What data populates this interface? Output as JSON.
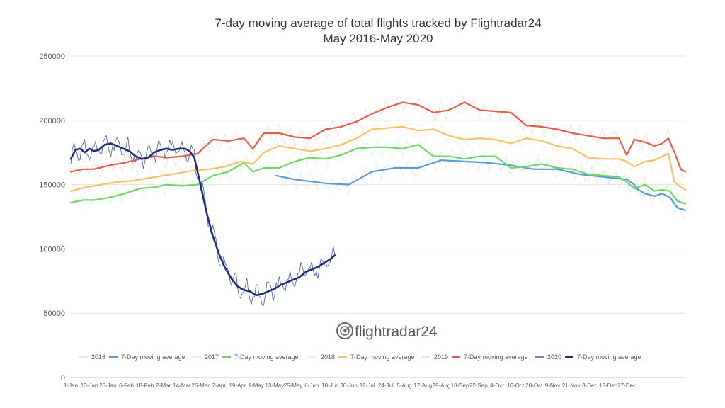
{
  "chart_data": {
    "type": "line",
    "title": "7-day moving average of total flights tracked by Flightradar24",
    "subtitle": "May 2016-May 2020",
    "ylim": [
      0,
      250000
    ],
    "grid": true,
    "legend_position": "bottom",
    "y_ticks": [
      "0",
      "50000",
      "100000",
      "150000",
      "200000",
      "250000"
    ],
    "x_ticks": [
      "1-Jan",
      "13-Jan",
      "25-Jan",
      "6-Feb",
      "18-Feb",
      "2-Mar",
      "14-Mar",
      "26-Mar",
      "7-Apr",
      "19-Apr",
      "1-May",
      "13-May",
      "25-May",
      "6-Jun",
      "18-Jun",
      "30-Jun",
      "12-Jul",
      "24-Jul",
      "5-Aug",
      "17-Aug",
      "29-Aug",
      "10-Sep",
      "22-Sep",
      "4-Oct",
      "16-Oct",
      "28-Oct",
      "9-Nov",
      "21-Nov",
      "3-Dec",
      "15-Dec",
      "27-Dec"
    ],
    "series": [
      {
        "year": "2016",
        "name": "7-Day moving average",
        "color": "#5b9bd5",
        "daily_color": "#cfe0f1",
        "points": [
          [
            133,
            157000
          ],
          [
            145,
            154000
          ],
          [
            165,
            151000
          ],
          [
            180,
            150000
          ],
          [
            195,
            160000
          ],
          [
            210,
            163000
          ],
          [
            225,
            163000
          ],
          [
            240,
            169000
          ],
          [
            255,
            168000
          ],
          [
            270,
            167000
          ],
          [
            285,
            165000
          ],
          [
            300,
            162000
          ],
          [
            315,
            162000
          ],
          [
            330,
            158000
          ],
          [
            345,
            156000
          ],
          [
            360,
            154000
          ],
          [
            365,
            150000
          ],
          [
            366,
            147000
          ],
          [
            372,
            143000
          ],
          [
            378,
            141000
          ],
          [
            383,
            143000
          ],
          [
            388,
            140000
          ],
          [
            393,
            132000
          ],
          [
            398,
            130000
          ]
        ]
      },
      {
        "year": "2017",
        "name": "7-Day moving average",
        "color": "#70d46a",
        "daily_color": "#d6f2d2",
        "points": [
          [
            0,
            136000
          ],
          [
            8,
            138000
          ],
          [
            15,
            138000
          ],
          [
            25,
            140000
          ],
          [
            35,
            143000
          ],
          [
            45,
            147000
          ],
          [
            55,
            148000
          ],
          [
            62,
            150000
          ],
          [
            72,
            149000
          ],
          [
            82,
            150000
          ],
          [
            92,
            157000
          ],
          [
            102,
            160000
          ],
          [
            112,
            167000
          ],
          [
            118,
            160000
          ],
          [
            125,
            163000
          ],
          [
            135,
            163000
          ],
          [
            145,
            168000
          ],
          [
            155,
            171000
          ],
          [
            165,
            170000
          ],
          [
            175,
            173000
          ],
          [
            185,
            178000
          ],
          [
            195,
            179000
          ],
          [
            205,
            179000
          ],
          [
            215,
            178000
          ],
          [
            225,
            181000
          ],
          [
            235,
            172000
          ],
          [
            245,
            172000
          ],
          [
            255,
            170000
          ],
          [
            265,
            172000
          ],
          [
            275,
            172000
          ],
          [
            285,
            163000
          ],
          [
            295,
            164000
          ],
          [
            305,
            166000
          ],
          [
            315,
            163000
          ],
          [
            325,
            162000
          ],
          [
            335,
            158000
          ],
          [
            345,
            157000
          ],
          [
            355,
            156000
          ],
          [
            360,
            152000
          ],
          [
            365,
            147000
          ],
          [
            372,
            150000
          ],
          [
            378,
            145000
          ],
          [
            383,
            146000
          ],
          [
            388,
            145000
          ],
          [
            393,
            137000
          ],
          [
            398,
            135000
          ]
        ]
      },
      {
        "year": "2018",
        "name": "7-Day moving average",
        "color": "#f0c26a",
        "daily_color": "#fbe9c9",
        "points": [
          [
            0,
            145000
          ],
          [
            10,
            148000
          ],
          [
            20,
            150000
          ],
          [
            30,
            152000
          ],
          [
            40,
            153000
          ],
          [
            50,
            155000
          ],
          [
            60,
            157000
          ],
          [
            70,
            159000
          ],
          [
            80,
            161000
          ],
          [
            90,
            162000
          ],
          [
            100,
            164000
          ],
          [
            110,
            168000
          ],
          [
            118,
            166000
          ],
          [
            125,
            175000
          ],
          [
            135,
            180000
          ],
          [
            145,
            178000
          ],
          [
            155,
            176000
          ],
          [
            165,
            178000
          ],
          [
            175,
            181000
          ],
          [
            185,
            186000
          ],
          [
            195,
            193000
          ],
          [
            205,
            194000
          ],
          [
            215,
            195000
          ],
          [
            225,
            192000
          ],
          [
            235,
            193000
          ],
          [
            245,
            188000
          ],
          [
            255,
            185000
          ],
          [
            265,
            186000
          ],
          [
            275,
            185000
          ],
          [
            285,
            182000
          ],
          [
            295,
            186000
          ],
          [
            305,
            184000
          ],
          [
            315,
            180000
          ],
          [
            325,
            178000
          ],
          [
            335,
            171000
          ],
          [
            345,
            170000
          ],
          [
            355,
            170000
          ],
          [
            360,
            168000
          ],
          [
            365,
            164000
          ],
          [
            372,
            168000
          ],
          [
            378,
            169000
          ],
          [
            383,
            172000
          ],
          [
            387,
            174000
          ],
          [
            391,
            152000
          ],
          [
            395,
            148000
          ],
          [
            398,
            146000
          ]
        ]
      },
      {
        "year": "2019",
        "name": "7-Day moving average",
        "color": "#d9614e",
        "daily_color": "#f4d0ca",
        "points": [
          [
            0,
            160000
          ],
          [
            8,
            162000
          ],
          [
            15,
            162000
          ],
          [
            25,
            165000
          ],
          [
            35,
            167000
          ],
          [
            45,
            170000
          ],
          [
            55,
            172000
          ],
          [
            62,
            171000
          ],
          [
            72,
            172000
          ],
          [
            82,
            174000
          ],
          [
            92,
            185000
          ],
          [
            102,
            184000
          ],
          [
            112,
            186000
          ],
          [
            118,
            178000
          ],
          [
            125,
            190000
          ],
          [
            135,
            190000
          ],
          [
            145,
            187000
          ],
          [
            155,
            186000
          ],
          [
            165,
            193000
          ],
          [
            175,
            195000
          ],
          [
            185,
            199000
          ],
          [
            195,
            205000
          ],
          [
            205,
            210000
          ],
          [
            215,
            214000
          ],
          [
            225,
            212000
          ],
          [
            235,
            206000
          ],
          [
            245,
            208000
          ],
          [
            255,
            214000
          ],
          [
            265,
            208000
          ],
          [
            275,
            207000
          ],
          [
            285,
            206000
          ],
          [
            295,
            196000
          ],
          [
            305,
            195000
          ],
          [
            315,
            193000
          ],
          [
            325,
            190000
          ],
          [
            335,
            188000
          ],
          [
            345,
            186000
          ],
          [
            355,
            186000
          ],
          [
            360,
            173000
          ],
          [
            365,
            185000
          ],
          [
            372,
            183000
          ],
          [
            378,
            180000
          ],
          [
            383,
            182000
          ],
          [
            387,
            186000
          ],
          [
            391,
            175000
          ],
          [
            395,
            162000
          ],
          [
            398,
            160000
          ]
        ]
      },
      {
        "year": "2020",
        "name": "7-Day moving average",
        "color": "#1f2f7a",
        "daily_color": "#4055ad",
        "points": [
          [
            0,
            170000
          ],
          [
            3,
            177000
          ],
          [
            6,
            178000
          ],
          [
            9,
            175000
          ],
          [
            12,
            178000
          ],
          [
            15,
            176000
          ],
          [
            18,
            177000
          ],
          [
            22,
            181000
          ],
          [
            26,
            182000
          ],
          [
            30,
            180000
          ],
          [
            34,
            178000
          ],
          [
            38,
            176000
          ],
          [
            42,
            172000
          ],
          [
            46,
            170000
          ],
          [
            50,
            171000
          ],
          [
            54,
            175000
          ],
          [
            58,
            177000
          ],
          [
            62,
            178000
          ],
          [
            66,
            177000
          ],
          [
            70,
            178000
          ],
          [
            74,
            178000
          ],
          [
            77,
            176000
          ],
          [
            80,
            171000
          ],
          [
            84,
            150000
          ],
          [
            88,
            128000
          ],
          [
            92,
            110000
          ],
          [
            96,
            96000
          ],
          [
            100,
            85000
          ],
          [
            104,
            77000
          ],
          [
            108,
            71000
          ],
          [
            112,
            68000
          ],
          [
            116,
            67000
          ],
          [
            120,
            64000
          ],
          [
            124,
            65000
          ],
          [
            128,
            67000
          ],
          [
            132,
            69000
          ],
          [
            136,
            72000
          ],
          [
            140,
            74000
          ],
          [
            144,
            76000
          ],
          [
            148,
            78000
          ],
          [
            152,
            82000
          ],
          [
            156,
            84000
          ],
          [
            160,
            86000
          ],
          [
            164,
            89000
          ],
          [
            168,
            92000
          ],
          [
            171,
            95000
          ]
        ]
      }
    ]
  },
  "legend": [
    {
      "year": "2016",
      "label": "7-Day moving average"
    },
    {
      "year": "2017",
      "label": "7-Day moving average"
    },
    {
      "year": "2018",
      "label": "7-Day moving average"
    },
    {
      "year": "2019",
      "label": "7-Day moving average"
    },
    {
      "year": "2020",
      "label": "7-Day moving average"
    }
  ],
  "logo": {
    "text": "flightradar24",
    "icon": "radar-icon"
  }
}
